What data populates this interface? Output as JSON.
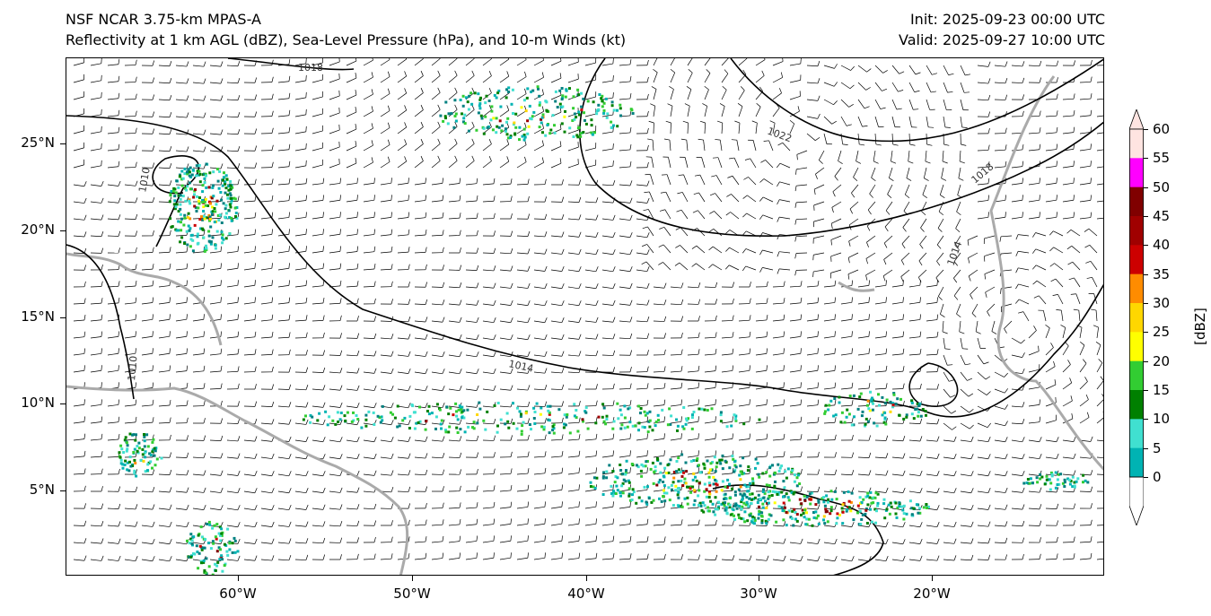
{
  "header": {
    "left_line1": "NSF NCAR 3.75-km MPAS-A",
    "left_line2": "Reflectivity at 1 km AGL (dBZ), Sea-Level Pressure (hPa), and 10-m Winds (kt)",
    "right_line1": "Init: 2025-09-23 00:00 UTC",
    "right_line2": "Valid: 2025-09-27 10:00 UTC"
  },
  "map": {
    "lat_labels": [
      "25°N",
      "20°N",
      "15°N",
      "10°N",
      "5°N"
    ],
    "lon_labels": [
      "60°W",
      "50°W",
      "40°W",
      "30°W",
      "20°W"
    ],
    "isobar_labels": [
      "1018",
      "1022",
      "1018",
      "1014",
      "1014",
      "1010",
      "1010"
    ]
  },
  "colorbar": {
    "title": "[dBZ]",
    "ticks": [
      "0",
      "5",
      "10",
      "15",
      "20",
      "25",
      "30",
      "35",
      "40",
      "45",
      "50",
      "55",
      "60"
    ],
    "colors": [
      "#008080",
      "#00b3b3",
      "#40e0d0",
      "#008000",
      "#32cd32",
      "#ffff00",
      "#ffd700",
      "#ff8c00",
      "#cc0000",
      "#a00000",
      "#800000",
      "#ff00ff",
      "#ffe4e1"
    ]
  }
}
